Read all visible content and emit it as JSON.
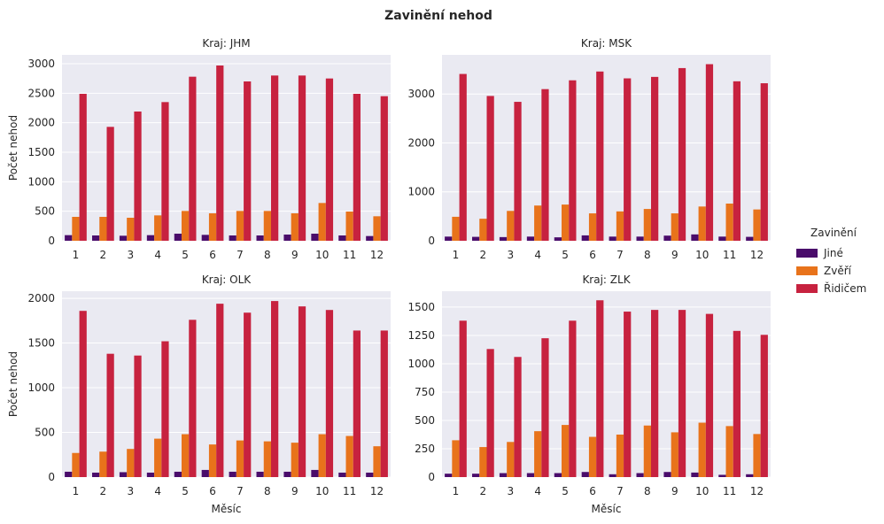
{
  "figure": {
    "title": "Zavinění nehod"
  },
  "legend": {
    "title": "Zavinění",
    "items": [
      {
        "label": "Jiné",
        "color": "#4a0c6b"
      },
      {
        "label": "Zvěří",
        "color": "#e8731b"
      },
      {
        "label": "Řidičem",
        "color": "#c7223f"
      }
    ]
  },
  "chart_data": [
    {
      "type": "bar",
      "title": "Kraj: JHM",
      "xlabel": "",
      "ylabel": "Počet nehod",
      "categories": [
        "1",
        "2",
        "3",
        "4",
        "5",
        "6",
        "7",
        "8",
        "9",
        "10",
        "11",
        "12"
      ],
      "ylim": [
        0,
        3150
      ],
      "yticks": [
        0,
        500,
        1000,
        1500,
        2000,
        2500,
        3000
      ],
      "ytick_labels": [
        "0",
        "500",
        "1000",
        "1500",
        "2000",
        "2500",
        "3000"
      ],
      "series": [
        {
          "name": "Jiné",
          "values": [
            95,
            90,
            85,
            95,
            120,
            100,
            90,
            90,
            105,
            120,
            90,
            80
          ]
        },
        {
          "name": "Zvěří",
          "values": [
            405,
            405,
            390,
            430,
            505,
            465,
            505,
            505,
            465,
            640,
            495,
            415
          ]
        },
        {
          "name": "Řidičem",
          "values": [
            2490,
            1930,
            2190,
            2350,
            2780,
            2970,
            2700,
            2800,
            2800,
            2750,
            2490,
            2450
          ]
        }
      ]
    },
    {
      "type": "bar",
      "title": "Kraj: MSK",
      "xlabel": "",
      "ylabel": "",
      "categories": [
        "1",
        "2",
        "3",
        "4",
        "5",
        "6",
        "7",
        "8",
        "9",
        "10",
        "11",
        "12"
      ],
      "ylim": [
        0,
        3800
      ],
      "yticks": [
        0,
        1000,
        2000,
        3000
      ],
      "ytick_labels": [
        "0",
        "1000",
        "2000",
        "3000"
      ],
      "series": [
        {
          "name": "Jiné",
          "values": [
            85,
            80,
            75,
            85,
            70,
            110,
            85,
            85,
            105,
            130,
            85,
            80
          ]
        },
        {
          "name": "Zvěří",
          "values": [
            490,
            450,
            610,
            720,
            740,
            560,
            600,
            650,
            560,
            700,
            760,
            640
          ]
        },
        {
          "name": "Řidičem",
          "values": [
            3410,
            2960,
            2840,
            3100,
            3280,
            3460,
            3320,
            3350,
            3530,
            3610,
            3260,
            3220
          ]
        }
      ]
    },
    {
      "type": "bar",
      "title": "Kraj: OLK",
      "xlabel": "Měsíc",
      "ylabel": "Počet nehod",
      "categories": [
        "1",
        "2",
        "3",
        "4",
        "5",
        "6",
        "7",
        "8",
        "9",
        "10",
        "11",
        "12"
      ],
      "ylim": [
        0,
        2080
      ],
      "yticks": [
        0,
        500,
        1000,
        1500,
        2000
      ],
      "ytick_labels": [
        "0",
        "500",
        "1000",
        "1500",
        "2000"
      ],
      "series": [
        {
          "name": "Jiné",
          "values": [
            60,
            50,
            55,
            50,
            60,
            80,
            60,
            60,
            60,
            80,
            50,
            50
          ]
        },
        {
          "name": "Zvěří",
          "values": [
            270,
            285,
            315,
            430,
            480,
            365,
            410,
            400,
            385,
            480,
            460,
            345
          ]
        },
        {
          "name": "Řidičem",
          "values": [
            1860,
            1380,
            1360,
            1520,
            1760,
            1940,
            1840,
            1970,
            1910,
            1870,
            1640,
            1640
          ]
        }
      ]
    },
    {
      "type": "bar",
      "title": "Kraj: ZLK",
      "xlabel": "Měsíc",
      "ylabel": "",
      "categories": [
        "1",
        "2",
        "3",
        "4",
        "5",
        "6",
        "7",
        "8",
        "9",
        "10",
        "11",
        "12"
      ],
      "ylim": [
        0,
        1640
      ],
      "yticks": [
        0,
        250,
        500,
        750,
        1000,
        1250,
        1500
      ],
      "ytick_labels": [
        "0",
        "250",
        "500",
        "750",
        "1000",
        "1250",
        "1500"
      ],
      "series": [
        {
          "name": "Jiné",
          "values": [
            30,
            30,
            35,
            35,
            35,
            45,
            25,
            35,
            45,
            40,
            20,
            25
          ]
        },
        {
          "name": "Zvěří",
          "values": [
            325,
            265,
            310,
            405,
            460,
            355,
            375,
            455,
            395,
            480,
            450,
            380
          ]
        },
        {
          "name": "Řidičem",
          "values": [
            1380,
            1130,
            1060,
            1225,
            1380,
            1560,
            1460,
            1475,
            1475,
            1440,
            1290,
            1255
          ]
        }
      ]
    }
  ]
}
